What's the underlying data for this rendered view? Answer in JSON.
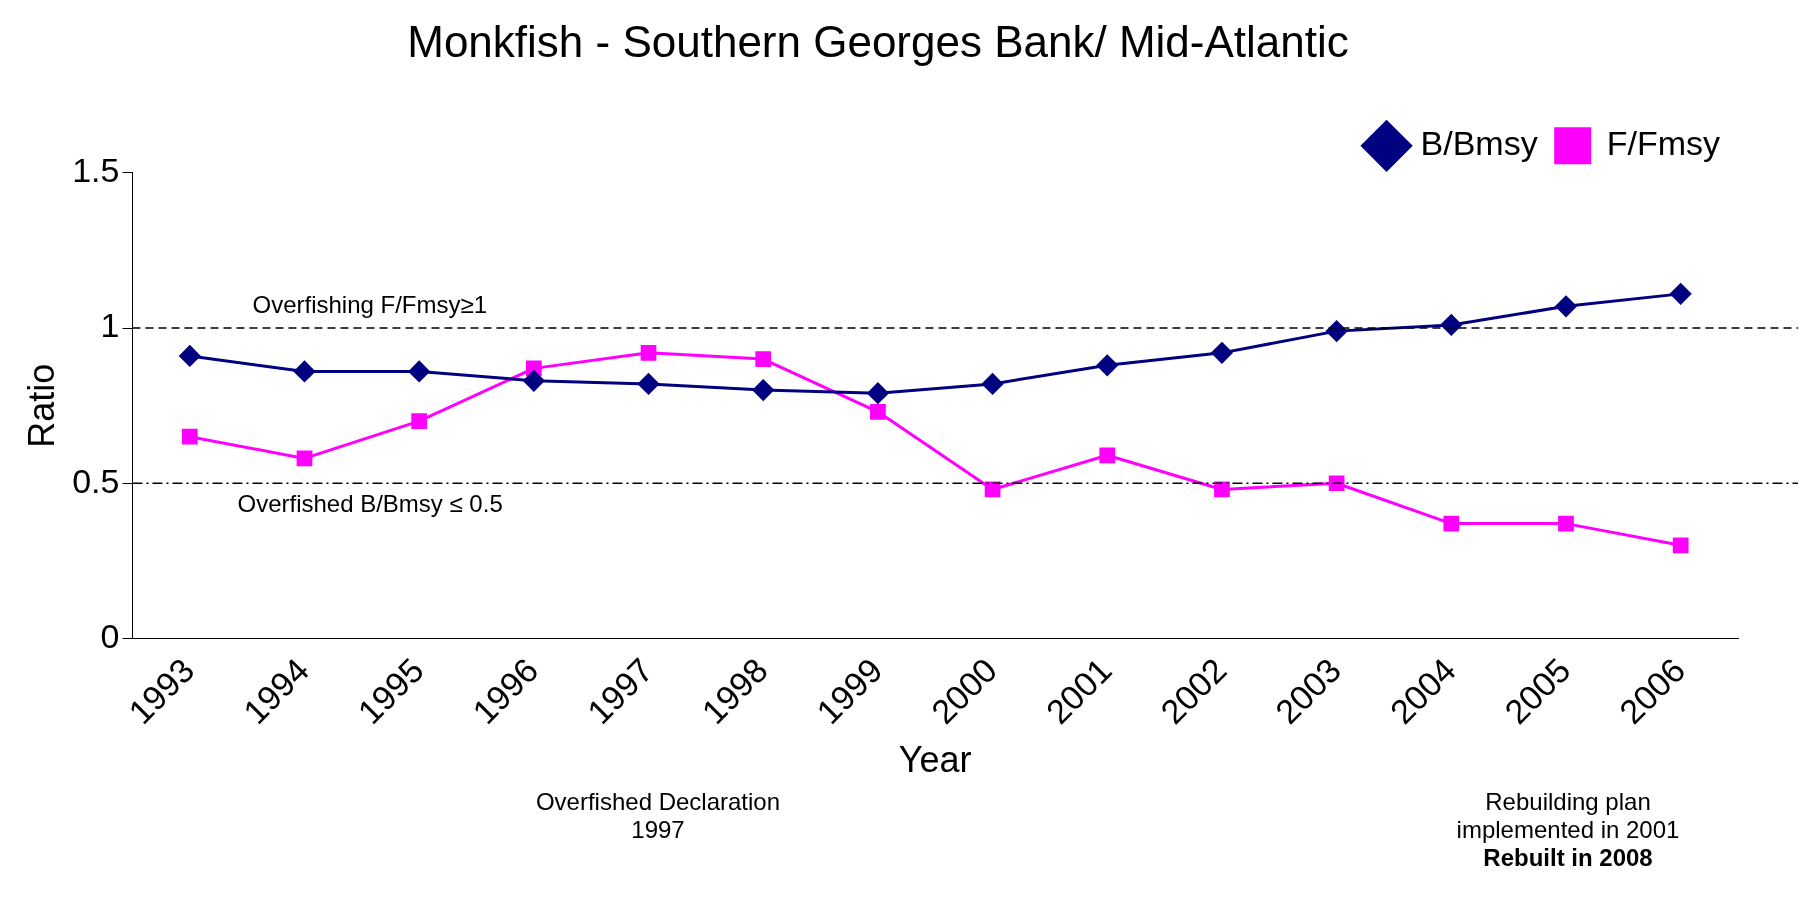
{
  "chart_data": {
    "type": "line",
    "title": "Monkfish - Southern Georges Bank/ Mid-Atlantic",
    "xlabel": "Year",
    "ylabel": "Ratio",
    "categories": [
      "1993",
      "1994",
      "1995",
      "1996",
      "1997",
      "1998",
      "1999",
      "2000",
      "2001",
      "2002",
      "2003",
      "2004",
      "2005",
      "2006"
    ],
    "series": [
      {
        "name": "B/Bmsy",
        "color": "#000080",
        "marker": "diamond",
        "values": [
          0.91,
          0.86,
          0.86,
          0.83,
          0.82,
          0.8,
          0.79,
          0.82,
          0.88,
          0.92,
          0.99,
          1.01,
          1.07,
          1.11
        ]
      },
      {
        "name": "F/Fmsy",
        "color": "#ff00ff",
        "marker": "square",
        "values": [
          0.65,
          0.58,
          0.7,
          0.87,
          0.92,
          0.9,
          0.73,
          0.48,
          0.59,
          0.48,
          0.5,
          0.37,
          0.37,
          0.3
        ]
      }
    ],
    "ylim": [
      0,
      1.5
    ],
    "yticks": [
      0,
      0.5,
      1,
      1.5
    ],
    "ref_lines": [
      {
        "axis": "y",
        "value": 1,
        "label": "Overfishing F/Fmsy≥1",
        "line_style": "dashed"
      },
      {
        "axis": "y",
        "value": 0.5,
        "label": "Overfished B/Bmsy ≤ 0.5",
        "line_style": "dashdot"
      }
    ],
    "annotations": [
      "Overfished Declaration 1997",
      "Rebuilding plan implemented in 2001",
      "Rebuilt in 2008"
    ],
    "grid": false,
    "legend": "top right",
    "line_style": "solid"
  }
}
